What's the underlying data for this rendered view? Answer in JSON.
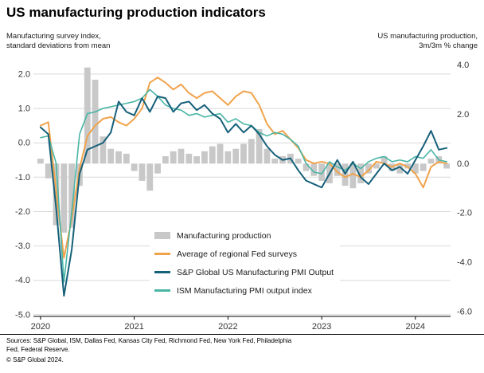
{
  "chart_data": {
    "type": "combo-bar-line",
    "title": "US manufacturing production indicators",
    "x_start": "2020-01",
    "x_end": "2024-05",
    "x_tick_labels": [
      "2020",
      "2021",
      "2022",
      "2023",
      "2024"
    ],
    "x_ticks": [
      {
        "label": "2020",
        "month": 0
      },
      {
        "label": "2021",
        "month": 12
      },
      {
        "label": "2022",
        "month": 24
      },
      {
        "label": "2023",
        "month": 36
      },
      {
        "label": "2024",
        "month": 48
      }
    ],
    "left_axis": {
      "label_line1": "Manufacturing survey index,",
      "label_line2": "standard deviations from mean",
      "ticks": [
        2.0,
        1.0,
        0.0,
        -1.0,
        -2.0,
        -3.0,
        -4.0,
        -5.0
      ],
      "domain": [
        -5.05,
        2.3
      ]
    },
    "right_axis": {
      "label_line1": "US manufacturing production,",
      "label_line2": "3m/3m % change",
      "ticks": [
        4.0,
        2.0,
        0.0,
        -2.0,
        -4.0,
        -6.0
      ],
      "domain": [
        -6.2,
        4.05
      ]
    },
    "grid": "horizontal",
    "legend_position": "inside-bottom-center",
    "bar_series": {
      "id": "manufacturing-production",
      "name": "Manufacturing production",
      "axis": "right",
      "color": "#c8c8c8",
      "values": [
        0.2,
        -0.6,
        -2.5,
        -2.8,
        -2.6,
        -0.9,
        3.9,
        3.4,
        1.1,
        0.6,
        0.5,
        0.4,
        -0.3,
        -0.7,
        -1.1,
        -0.4,
        0.3,
        0.5,
        0.6,
        0.4,
        0.3,
        0.5,
        0.7,
        0.8,
        0.5,
        0.6,
        0.8,
        1.0,
        1.4,
        0.6,
        0.2,
        0.3,
        0.4,
        0.2,
        -0.3,
        -0.5,
        -0.7,
        -0.8,
        -0.5,
        -0.9,
        -1.0,
        -0.8,
        -0.4,
        -0.2,
        0.3,
        -0.3,
        -0.4,
        -0.2,
        -0.4,
        -0.3,
        0.2,
        0.3,
        -0.2
      ]
    },
    "line_series": [
      {
        "id": "fed-surveys",
        "name": "Average of regional Fed surveys",
        "axis": "left",
        "color": "#f0a34c",
        "width": 2,
        "values": [
          0.5,
          0.6,
          -1.4,
          -3.35,
          -2.2,
          -0.75,
          0.2,
          0.5,
          0.7,
          0.75,
          0.6,
          0.5,
          0.7,
          1.0,
          1.75,
          1.9,
          1.75,
          1.55,
          1.7,
          1.45,
          1.3,
          1.45,
          1.5,
          1.3,
          1.1,
          1.35,
          1.5,
          1.45,
          1.1,
          0.55,
          0.25,
          0.35,
          0.1,
          -0.15,
          -0.5,
          -0.6,
          -0.55,
          -0.6,
          -0.85,
          -1.0,
          -0.9,
          -1.0,
          -0.8,
          -0.55,
          -0.6,
          -0.7,
          -0.6,
          -0.7,
          -0.9,
          -1.3,
          -0.7,
          -0.55,
          -0.6
        ]
      },
      {
        "id": "ism-pmi",
        "name": "ISM Manufacturing PMI output index",
        "axis": "left",
        "color": "#49b5a5",
        "width": 1.6,
        "values": [
          0.15,
          0.2,
          -0.6,
          -4.05,
          -2.0,
          0.25,
          0.85,
          0.9,
          1.0,
          1.05,
          1.1,
          1.15,
          1.2,
          1.3,
          1.55,
          1.35,
          1.1,
          1.0,
          0.95,
          0.8,
          0.85,
          0.75,
          0.8,
          0.85,
          0.6,
          0.7,
          0.55,
          0.5,
          0.3,
          0.2,
          0.3,
          0.25,
          0.1,
          -0.1,
          -0.6,
          -0.85,
          -0.9,
          -0.55,
          -0.7,
          -0.8,
          -0.6,
          -0.75,
          -0.55,
          -0.45,
          -0.4,
          -0.55,
          -0.5,
          -0.55,
          -0.4,
          -0.45,
          -0.2,
          -0.5,
          -0.55
        ]
      },
      {
        "id": "sp-global-pmi",
        "name": "S&P Global US Manufacturing PMI Output",
        "axis": "left",
        "color": "#16607a",
        "width": 2,
        "values": [
          0.45,
          0.25,
          -1.9,
          -4.45,
          -3.1,
          -0.9,
          -0.2,
          -0.1,
          0.0,
          0.3,
          1.2,
          0.9,
          0.8,
          1.3,
          0.9,
          1.35,
          1.3,
          0.9,
          1.15,
          1.2,
          0.95,
          1.1,
          0.85,
          0.7,
          0.3,
          0.55,
          0.3,
          0.5,
          0.25,
          -0.1,
          -0.35,
          -0.5,
          -0.45,
          -0.8,
          -1.1,
          -1.2,
          -1.3,
          -0.9,
          -0.5,
          -0.9,
          -0.55,
          -1.0,
          -1.2,
          -0.9,
          -0.6,
          -0.8,
          -0.7,
          -0.9,
          -0.5,
          -0.1,
          0.35,
          -0.2,
          -0.15
        ]
      }
    ]
  },
  "legend": {
    "bar_label": "Manufacturing production",
    "line1_label": "Average of regional Fed surveys",
    "line2_label": "S&P Global US Manufacturing PMI Output",
    "line3_label": "ISM Manufacturing PMI output index"
  },
  "colors": {
    "bar": "#c8c8c8",
    "orange": "#f0a34c",
    "dark_teal": "#16607a",
    "light_teal": "#49b5a5",
    "gridline": "#d9d9d9",
    "axis_text": "#333333"
  },
  "footer": {
    "sources_line1": "Sources: S&P Global, ISM, Dallas Fed, Kansas City Fed, Richmond Fed, New York Fed, Philadelphia",
    "sources_line2": "Fed, Federal Reserve.",
    "copyright": "© S&P Global 2024."
  }
}
